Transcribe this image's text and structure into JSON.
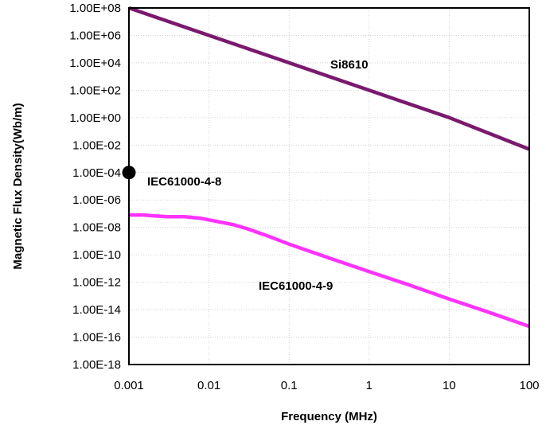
{
  "chart_data": {
    "type": "line",
    "xlabel": "Frequency (MHz)",
    "ylabel": "Magnetic Flux Density(Wb/m)",
    "x_scale": "log",
    "y_scale": "log",
    "xlim": [
      0.001,
      100
    ],
    "ylim": [
      1e-18,
      100000000.0
    ],
    "x_ticks": [
      {
        "value": 0.001,
        "label": "0.001"
      },
      {
        "value": 0.01,
        "label": "0.01"
      },
      {
        "value": 0.1,
        "label": "0.1"
      },
      {
        "value": 1,
        "label": "1"
      },
      {
        "value": 10,
        "label": "10"
      },
      {
        "value": 100,
        "label": "100"
      }
    ],
    "y_ticks": [
      {
        "value": 100000000.0,
        "label": "1.00E+08"
      },
      {
        "value": 1000000.0,
        "label": "1.00E+06"
      },
      {
        "value": 10000.0,
        "label": "1.00E+04"
      },
      {
        "value": 100.0,
        "label": "1.00E+02"
      },
      {
        "value": 1.0,
        "label": "1.00E+00"
      },
      {
        "value": 0.01,
        "label": "1.00E-02"
      },
      {
        "value": 0.0001,
        "label": "1.00E-04"
      },
      {
        "value": 1e-06,
        "label": "1.00E-06"
      },
      {
        "value": 1e-08,
        "label": "1.00E-08"
      },
      {
        "value": 1e-10,
        "label": "1.00E-10"
      },
      {
        "value": 1e-12,
        "label": "1.00E-12"
      },
      {
        "value": 1e-14,
        "label": "1.00E-14"
      },
      {
        "value": 1e-16,
        "label": "1.00E-16"
      },
      {
        "value": 1e-18,
        "label": "1.00E-18"
      }
    ],
    "grid": true,
    "series": [
      {
        "name": "Si8610",
        "color": "#7a1a6e",
        "x": [
          0.001,
          0.01,
          0.1,
          1,
          10,
          100
        ],
        "y": [
          100000000.0,
          1000000.0,
          10000.0,
          100.0,
          1.0,
          0.005
        ]
      },
      {
        "name": "IEC61000-4-9",
        "color": "#ff33ff",
        "x": [
          0.001,
          0.0015,
          0.002,
          0.003,
          0.005,
          0.008,
          0.01,
          0.02,
          0.03,
          0.05,
          0.1,
          0.3,
          1,
          3,
          10,
          30,
          100
        ],
        "y": [
          8e-08,
          8e-08,
          7e-08,
          6e-08,
          6e-08,
          4.5e-08,
          3.5e-08,
          1.6e-08,
          8e-09,
          2.8e-09,
          6e-10,
          6.5e-11,
          6e-12,
          7e-13,
          6e-14,
          7e-15,
          6e-16
        ]
      },
      {
        "name": "IEC61000-4-8",
        "type": "point",
        "color": "#000000",
        "x": [
          0.001
        ],
        "y": [
          0.0001
        ]
      }
    ]
  }
}
